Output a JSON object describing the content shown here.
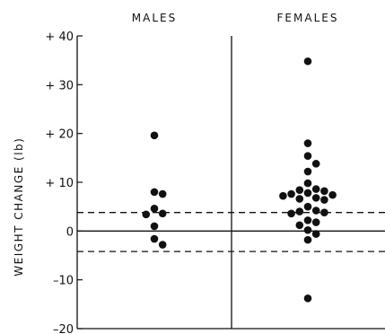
{
  "chart_data": {
    "type": "scatter",
    "title": "",
    "ylabel": "WEIGHT CHANGE (lb)",
    "xlabel": "",
    "categories": [
      "MALES",
      "FEMALES"
    ],
    "ylim": [
      -20,
      40
    ],
    "yticks": [
      -20,
      -10,
      0,
      10,
      20,
      30,
      40
    ],
    "ytick_labels": [
      "–20",
      "–10",
      "0",
      "+ 10",
      "+ 20",
      "+ 30",
      "+ 40"
    ],
    "reference_lines": [
      {
        "y": 0,
        "style": "solid"
      },
      {
        "y": 3.8,
        "style": "dashed"
      },
      {
        "y": -4.2,
        "style": "dashed"
      }
    ],
    "grid": false,
    "legend": "none",
    "series": [
      {
        "values": [
          19.6,
          8.0,
          7.6,
          4.6,
          3.6,
          3.4,
          1.0,
          -1.6,
          -2.8
        ]
      },
      {
        "values": [
          34.8,
          18.0,
          15.4,
          13.8,
          12.2,
          9.8,
          8.6,
          8.4,
          8.2,
          7.8,
          7.6,
          7.4,
          7.2,
          6.8,
          6.6,
          6.4,
          5.0,
          4.2,
          4.0,
          3.8,
          3.6,
          2.2,
          1.8,
          1.2,
          0.2,
          -0.6,
          -1.8,
          -13.8
        ]
      }
    ]
  }
}
